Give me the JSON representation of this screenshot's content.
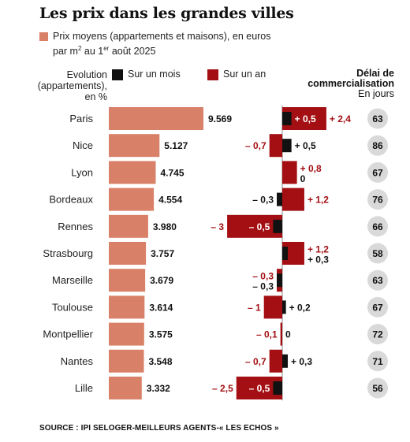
{
  "title": "Les prix dans les grandes villes",
  "legend": {
    "price_line1": "Prix moyens (appartements et maisons), en euros",
    "price_line2_pre": "par m",
    "price_line2_sup1": "2",
    "price_line2_mid": " au 1",
    "price_line2_sup2": "er",
    "price_line2_post": " août 2025",
    "evolution_line1": "Evolution",
    "evolution_line2": "(appartements),",
    "evolution_line3": "en %",
    "month_label": "Sur un mois",
    "year_label": "Sur un an",
    "delai_line1": "Délai de",
    "delai_line2": "commercialisation",
    "delai_line3": "En jours"
  },
  "colors": {
    "price_bar": "#d98068",
    "month_bar": "#111111",
    "year_bar": "#a30f12",
    "delai_circle": "#d9d9d9",
    "axis": "#888888"
  },
  "source": "SOURCE : IPI SELOGER-MEILLEURS AGENTS-« LES ECHOS »",
  "chart_data": {
    "type": "bar",
    "categories": [
      "Paris",
      "Nice",
      "Lyon",
      "Bordeaux",
      "Rennes",
      "Strasbourg",
      "Marseille",
      "Toulouse",
      "Montpellier",
      "Nantes",
      "Lille"
    ],
    "series": [
      {
        "name": "Prix moyens (appartements et maisons), en euros par m2 au 1er août 2025",
        "values": [
          9569,
          5127,
          4745,
          4554,
          3980,
          3757,
          3679,
          3614,
          3575,
          3548,
          3332
        ],
        "labels": [
          "9.569",
          "5.127",
          "4.745",
          "4.554",
          "3.980",
          "3.757",
          "3.679",
          "3.614",
          "3.575",
          "3.548",
          "3.332"
        ]
      },
      {
        "name": "Sur un mois",
        "values": [
          0.5,
          0.5,
          0,
          -0.3,
          -0.5,
          0.3,
          -0.3,
          0.2,
          0,
          0.3,
          -0.5
        ],
        "labels": [
          "+ 0,5",
          "+ 0,5",
          "0",
          "– 0,3",
          "– 0,5",
          "+ 0,3",
          "– 0,3",
          "+ 0,2",
          "0",
          "+ 0,3",
          "– 0,5"
        ]
      },
      {
        "name": "Sur un an",
        "values": [
          2.4,
          -0.7,
          0.8,
          1.2,
          -3,
          1.2,
          -0.3,
          -1,
          -0.1,
          -0.7,
          -2.5
        ],
        "labels": [
          "+ 2,4",
          "– 0,7",
          "+ 0,8",
          "+ 1,2",
          "– 3",
          "+ 1,2",
          "– 0,3",
          "– 1",
          "– 0,1",
          "– 0,7",
          "– 2,5"
        ]
      },
      {
        "name": "Délai de commercialisation En jours",
        "values": [
          63,
          86,
          67,
          76,
          66,
          58,
          63,
          67,
          72,
          71,
          56
        ],
        "labels": [
          "63",
          "86",
          "67",
          "76",
          "66",
          "58",
          "63",
          "67",
          "72",
          "71",
          "56"
        ]
      }
    ]
  }
}
